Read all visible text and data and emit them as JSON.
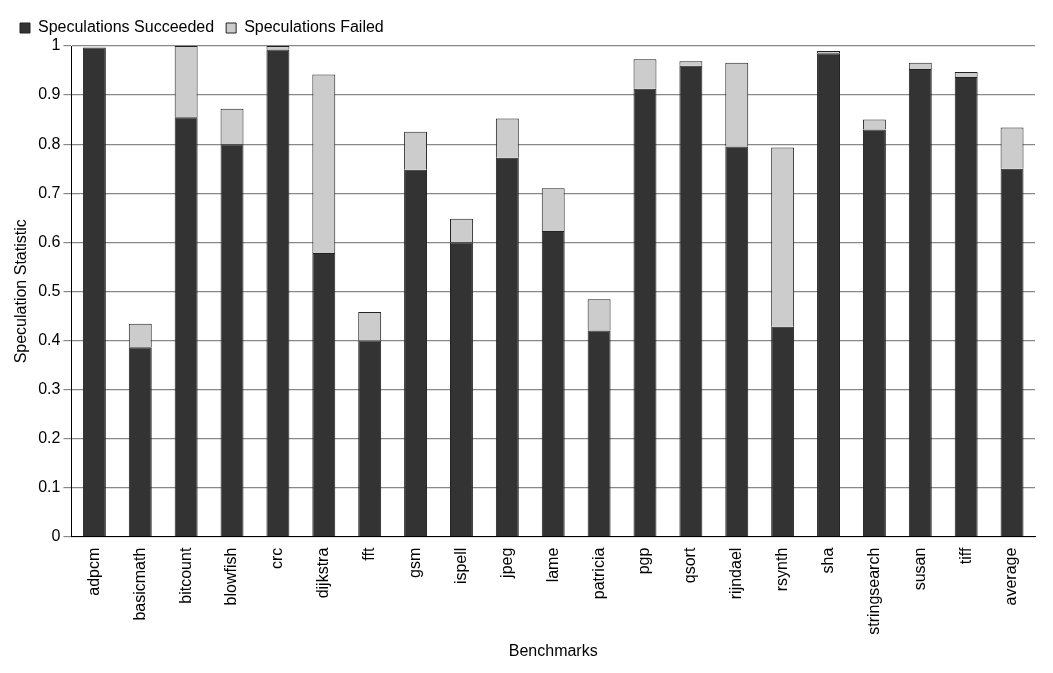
{
  "chart_data": {
    "type": "bar",
    "stacked": true,
    "xlabel": "Benchmarks",
    "ylabel": "Speculation Statistic",
    "categories": [
      "adpcm",
      "basicmath",
      "bitcount",
      "blowfish",
      "crc",
      "dijkstra",
      "fft",
      "gsm",
      "ispell",
      "jpeg",
      "lame",
      "patricia",
      "pgp",
      "qsort",
      "rijndael",
      "rsynth",
      "sha",
      "stringsearch",
      "susan",
      "tiff",
      "average"
    ],
    "series": [
      {
        "name": "Speculations Succeeded",
        "color": "#333333",
        "values": [
          0.997,
          0.386,
          0.855,
          0.8,
          0.993,
          0.578,
          0.4,
          0.748,
          0.6,
          0.772,
          0.623,
          0.42,
          0.913,
          0.96,
          0.795,
          0.428,
          0.985,
          0.83,
          0.953,
          0.937,
          0.75
        ]
      },
      {
        "name": "Speculations Failed",
        "color": "#cccccc",
        "values": [
          null,
          0.048,
          0.145,
          0.072,
          0.007,
          0.364,
          0.058,
          0.077,
          0.048,
          0.08,
          0.087,
          0.064,
          0.06,
          0.009,
          0.171,
          0.365,
          0.005,
          0.02,
          0.013,
          0.01,
          0.084
        ]
      }
    ],
    "ylim": [
      0,
      1
    ],
    "yticks": [
      0,
      0.1,
      0.2,
      0.3,
      0.4,
      0.5,
      0.6,
      0.7,
      0.8,
      0.9,
      1
    ],
    "grid": "y",
    "legend": "top left"
  }
}
